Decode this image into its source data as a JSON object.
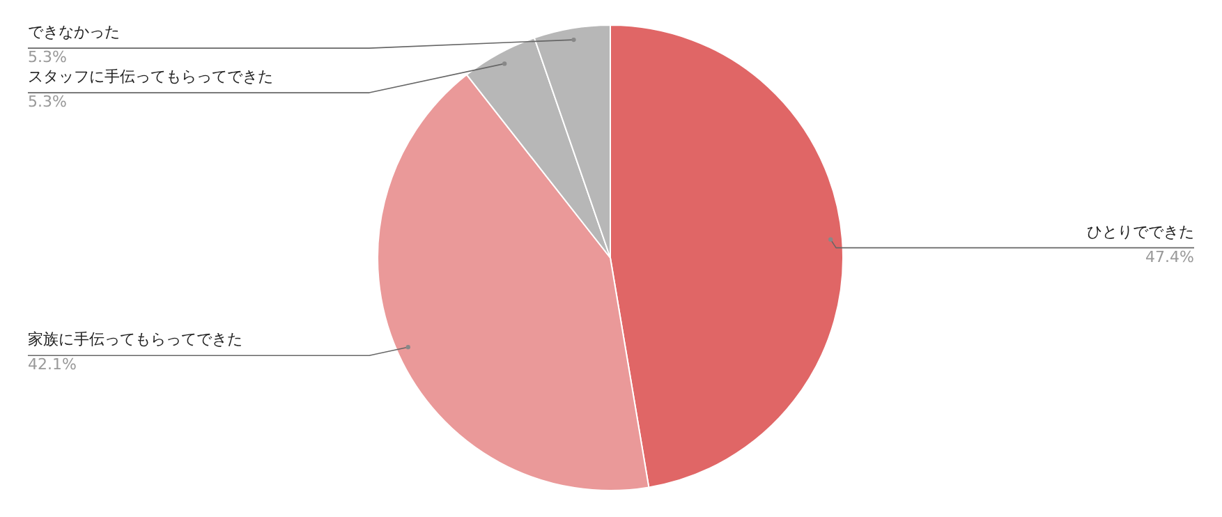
{
  "chart_data": {
    "type": "pie",
    "categories": [
      "ひとりでできた",
      "家族に手伝ってもらってできた",
      "スタッフに手伝ってもらってできた",
      "できなかった"
    ],
    "values": [
      47.4,
      42.1,
      5.3,
      5.3
    ],
    "colors": [
      "#e06666",
      "#ea9999",
      "#b7b7b7",
      "#b7b7b7"
    ],
    "value_labels": [
      "47.4%",
      "42.1%",
      "5.3%",
      "5.3%"
    ]
  }
}
